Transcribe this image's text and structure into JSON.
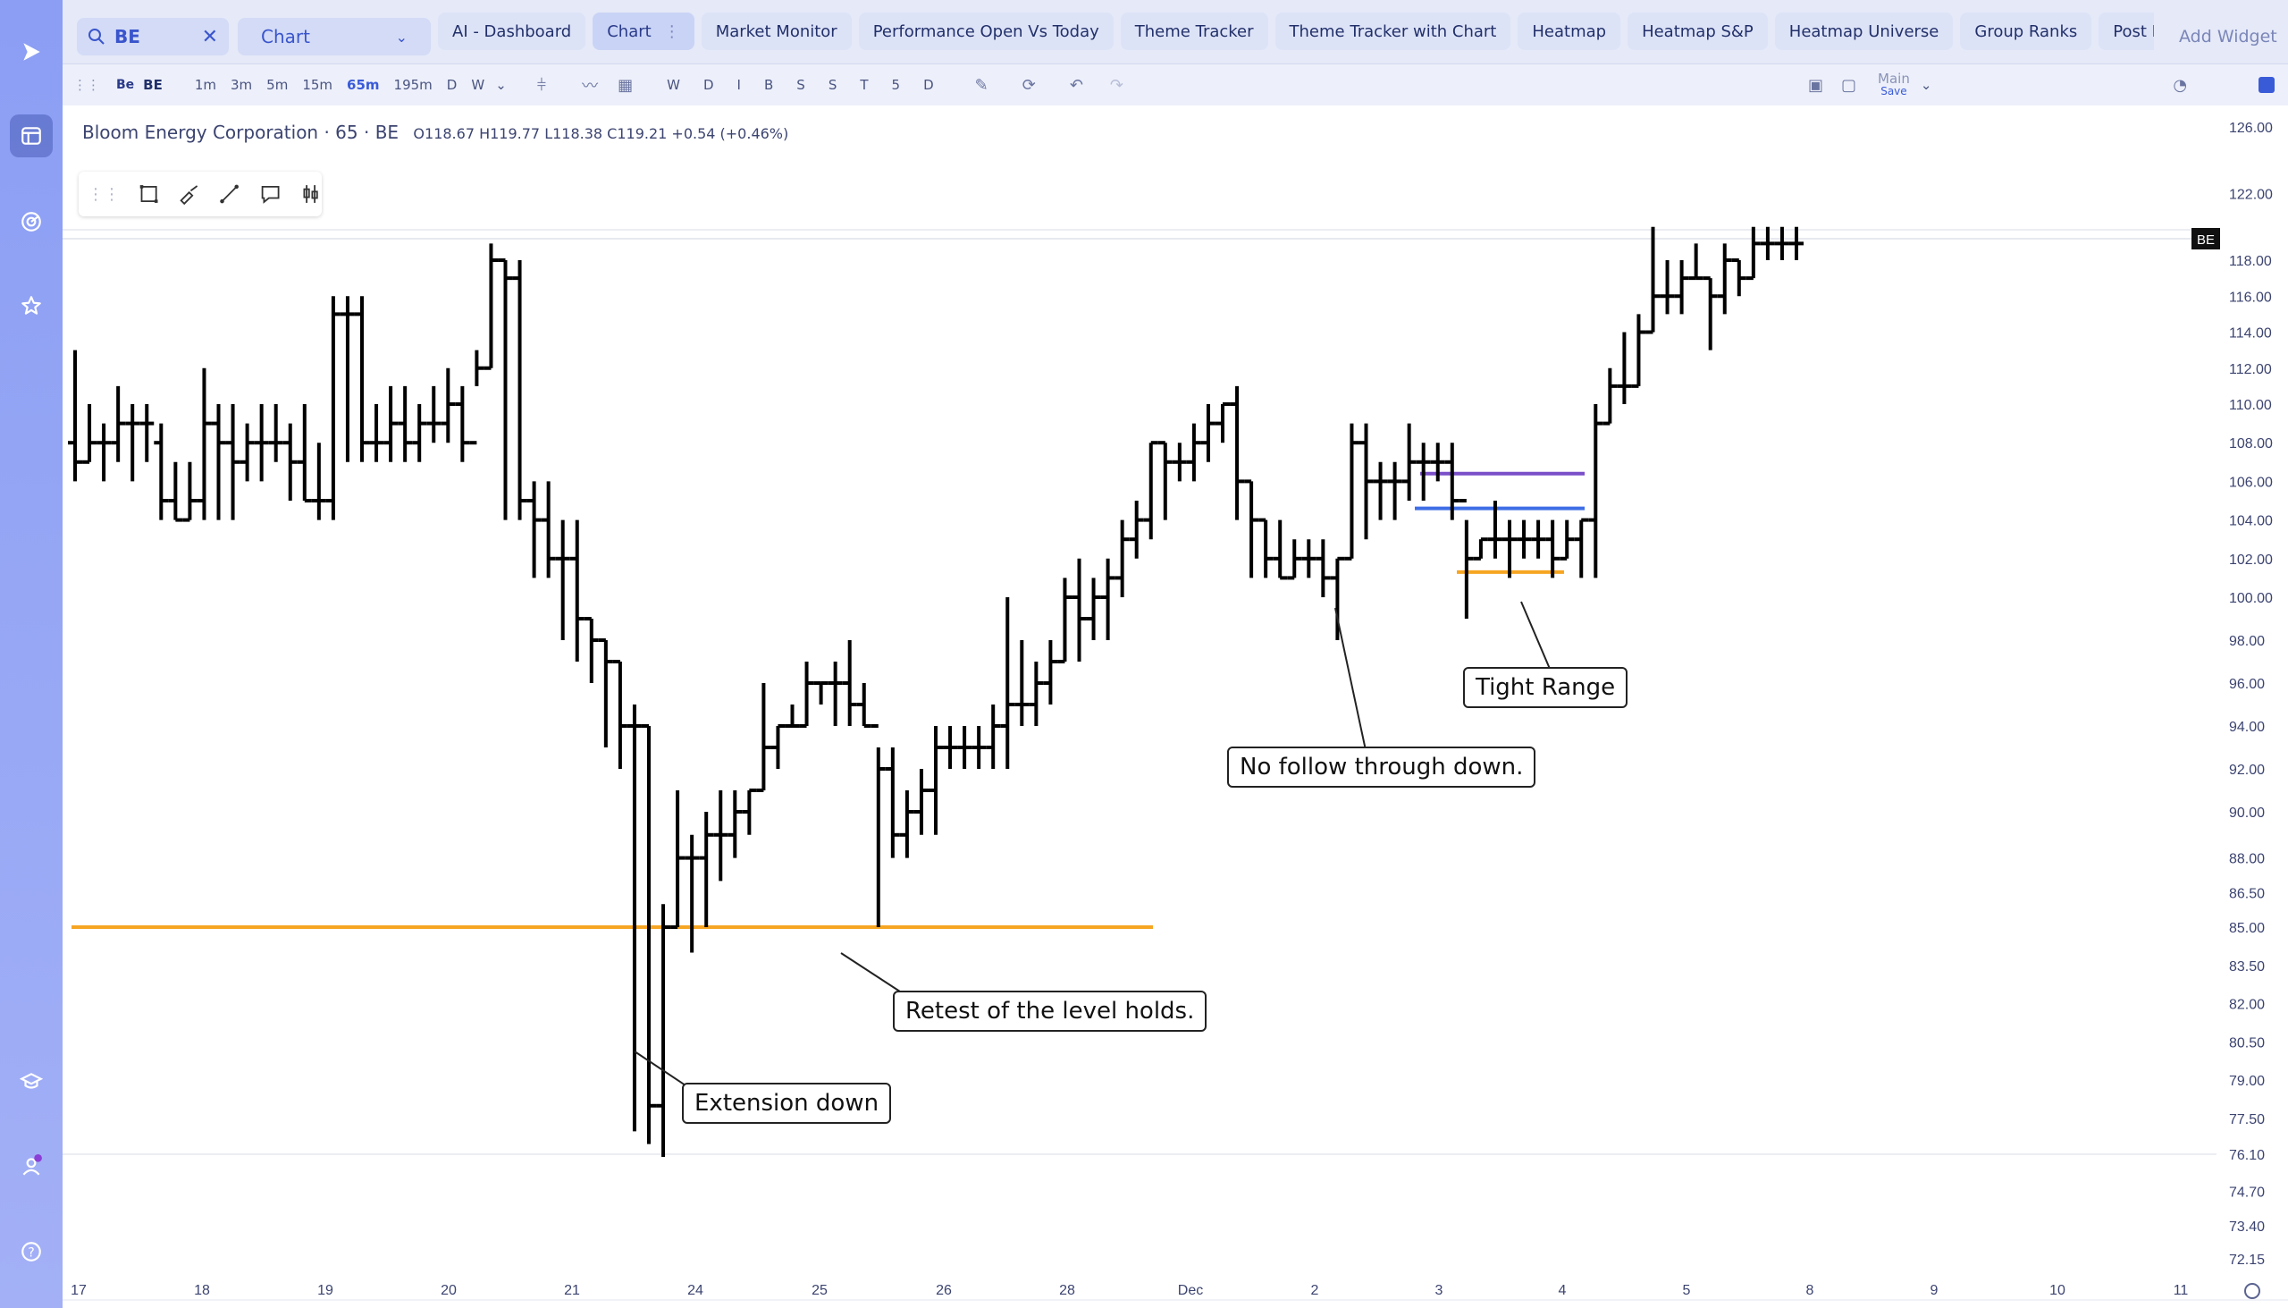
{
  "search": {
    "value": "BE",
    "clear": "✕"
  },
  "mode": {
    "selected": "Chart"
  },
  "tabs": [
    {
      "label": "AI - Dashboard"
    },
    {
      "label": "Chart",
      "active": true
    },
    {
      "label": "Market Monitor"
    },
    {
      "label": "Performance Open Vs Today"
    },
    {
      "label": "Theme Tracker"
    },
    {
      "label": "Theme Tracker with Chart"
    },
    {
      "label": "Heatmap"
    },
    {
      "label": "Heatmap S&P"
    },
    {
      "label": "Heatmap Universe"
    },
    {
      "label": "Group Ranks"
    },
    {
      "label": "Post Move"
    }
  ],
  "add_widget": "Add Widget",
  "toolbar": {
    "symbol": "BE",
    "timeframes": [
      "1m",
      "3m",
      "5m",
      "15m",
      "65m",
      "195m",
      "D",
      "W"
    ],
    "active_timeframe": "65m",
    "study_letters": [
      "W",
      "D",
      "I",
      "B",
      "S",
      "S",
      "T",
      "5",
      "D"
    ],
    "layout_name": "Main",
    "save_label": "Save"
  },
  "legend": {
    "name": "Bloom Energy Corporation · 65 · BE",
    "ohlc": "O118.67 H119.77 L118.38 C119.21 +0.54 (+0.46%)"
  },
  "annotations": {
    "extension": "Extension down",
    "retest": "Retest of the level holds.",
    "no_follow": "No follow through down.",
    "tight_range": "Tight Range"
  },
  "price_tag": "BE",
  "colors": {
    "level_orange": "#f6a623",
    "level_purple": "#7a4fc8",
    "level_blue": "#3f6ee6",
    "accent": "#3a5bd8"
  },
  "chart_data": {
    "type": "ohlc",
    "symbol": "BE",
    "interval": "65m",
    "y_ticks": [
      "126.00",
      "122.00",
      "118.00",
      "116.00",
      "114.00",
      "112.00",
      "110.00",
      "108.00",
      "106.00",
      "104.00",
      "102.00",
      "100.00",
      "98.00",
      "96.00",
      "94.00",
      "92.00",
      "90.00",
      "88.00",
      "86.50",
      "85.00",
      "83.50",
      "82.00",
      "80.50",
      "79.00",
      "77.50",
      "76.10",
      "74.70",
      "73.40",
      "72.15"
    ],
    "x_ticks": [
      "17",
      "18",
      "19",
      "20",
      "21",
      "24",
      "25",
      "26",
      "28",
      "Dec",
      "2",
      "3",
      "4",
      "5",
      "8",
      "9",
      "10",
      "11"
    ],
    "last_price": 119.21,
    "levels": [
      {
        "name": "support",
        "price": 85.0,
        "color": "orange"
      },
      {
        "name": "range-high",
        "price": 106.4,
        "color": "purple"
      },
      {
        "name": "range-mid",
        "price": 104.6,
        "color": "blue"
      },
      {
        "name": "range-low",
        "price": 101.3,
        "color": "orange"
      }
    ],
    "bars": [
      {
        "t": "17",
        "o": 108,
        "h": 113,
        "l": 106,
        "c": 107
      },
      {
        "t": "17",
        "o": 107,
        "h": 110,
        "l": 107,
        "c": 108
      },
      {
        "t": "17",
        "o": 108,
        "h": 109,
        "l": 106,
        "c": 108
      },
      {
        "t": "17",
        "o": 108,
        "h": 111,
        "l": 107,
        "c": 109
      },
      {
        "t": "17",
        "o": 109,
        "h": 110,
        "l": 106,
        "c": 109
      },
      {
        "t": "17",
        "o": 109,
        "h": 110,
        "l": 107,
        "c": 109
      },
      {
        "t": "18",
        "o": 108,
        "h": 109,
        "l": 104,
        "c": 105
      },
      {
        "t": "18",
        "o": 105,
        "h": 107,
        "l": 104,
        "c": 104
      },
      {
        "t": "18",
        "o": 104,
        "h": 107,
        "l": 104,
        "c": 105
      },
      {
        "t": "18",
        "o": 105,
        "h": 112,
        "l": 104,
        "c": 109
      },
      {
        "t": "18",
        "o": 109,
        "h": 110,
        "l": 104,
        "c": 108
      },
      {
        "t": "18",
        "o": 108,
        "h": 110,
        "l": 104,
        "c": 107
      },
      {
        "t": "18",
        "o": 107,
        "h": 109,
        "l": 106,
        "c": 108
      },
      {
        "t": "18",
        "o": 108,
        "h": 110,
        "l": 106,
        "c": 108
      },
      {
        "t": "18",
        "o": 108,
        "h": 110,
        "l": 107,
        "c": 108
      },
      {
        "t": "19",
        "o": 108,
        "h": 109,
        "l": 105,
        "c": 107
      },
      {
        "t": "19",
        "o": 107,
        "h": 110,
        "l": 105,
        "c": 105
      },
      {
        "t": "19",
        "o": 105,
        "h": 108,
        "l": 104,
        "c": 105
      },
      {
        "t": "19",
        "o": 105,
        "h": 116,
        "l": 104,
        "c": 115
      },
      {
        "t": "19",
        "o": 115,
        "h": 116,
        "l": 107,
        "c": 115
      },
      {
        "t": "19",
        "o": 115,
        "h": 116,
        "l": 107,
        "c": 108
      },
      {
        "t": "19",
        "o": 108,
        "h": 110,
        "l": 107,
        "c": 108
      },
      {
        "t": "19",
        "o": 108,
        "h": 111,
        "l": 107,
        "c": 109
      },
      {
        "t": "20",
        "o": 109,
        "h": 111,
        "l": 107,
        "c": 108
      },
      {
        "t": "20",
        "o": 108,
        "h": 110,
        "l": 107,
        "c": 109
      },
      {
        "t": "20",
        "o": 109,
        "h": 111,
        "l": 108,
        "c": 109
      },
      {
        "t": "20",
        "o": 109,
        "h": 112,
        "l": 108,
        "c": 110
      },
      {
        "t": "20",
        "o": 110,
        "h": 111,
        "l": 107,
        "c": 108
      },
      {
        "t": "20",
        "o": 108,
        "h": 113,
        "l": 111,
        "c": 112
      },
      {
        "t": "20",
        "o": 112,
        "h": 119,
        "l": 112,
        "c": 118
      },
      {
        "t": "20",
        "o": 118,
        "h": 118,
        "l": 104,
        "c": 117
      },
      {
        "t": "20",
        "o": 117,
        "h": 118,
        "l": 104,
        "c": 105
      },
      {
        "t": "21",
        "o": 105,
        "h": 106,
        "l": 101,
        "c": 104
      },
      {
        "t": "21",
        "o": 104,
        "h": 106,
        "l": 101,
        "c": 102
      },
      {
        "t": "21",
        "o": 102,
        "h": 104,
        "l": 98,
        "c": 102
      },
      {
        "t": "21",
        "o": 102,
        "h": 104,
        "l": 97,
        "c": 99
      },
      {
        "t": "21",
        "o": 99,
        "h": 99,
        "l": 96,
        "c": 98
      },
      {
        "t": "21",
        "o": 98,
        "h": 98,
        "l": 93,
        "c": 97
      },
      {
        "t": "21",
        "o": 97,
        "h": 97,
        "l": 92,
        "c": 94
      },
      {
        "t": "21",
        "o": 94,
        "h": 95,
        "l": 77,
        "c": 94
      },
      {
        "t": "24",
        "o": 94,
        "h": 94,
        "l": 76.5,
        "c": 78
      },
      {
        "t": "24",
        "o": 78,
        "h": 86,
        "l": 76,
        "c": 85
      },
      {
        "t": "24",
        "o": 85,
        "h": 91,
        "l": 85,
        "c": 88
      },
      {
        "t": "24",
        "o": 88,
        "h": 89,
        "l": 84,
        "c": 88
      },
      {
        "t": "24",
        "o": 88,
        "h": 90,
        "l": 85,
        "c": 89
      },
      {
        "t": "24",
        "o": 89,
        "h": 91,
        "l": 87,
        "c": 89
      },
      {
        "t": "24",
        "o": 89,
        "h": 91,
        "l": 88,
        "c": 90
      },
      {
        "t": "24",
        "o": 90,
        "h": 91,
        "l": 89,
        "c": 91
      },
      {
        "t": "24",
        "o": 91,
        "h": 96,
        "l": 91,
        "c": 93
      },
      {
        "t": "24",
        "o": 93,
        "h": 94,
        "l": 92,
        "c": 94
      },
      {
        "t": "24",
        "o": 94,
        "h": 95,
        "l": 94,
        "c": 94
      },
      {
        "t": "24",
        "o": 94,
        "h": 97,
        "l": 94,
        "c": 96
      },
      {
        "t": "24",
        "o": 96,
        "h": 96,
        "l": 95,
        "c": 96
      },
      {
        "t": "25",
        "o": 96,
        "h": 97,
        "l": 94,
        "c": 96
      },
      {
        "t": "25",
        "o": 96,
        "h": 98,
        "l": 94,
        "c": 95
      },
      {
        "t": "25",
        "o": 95,
        "h": 96,
        "l": 94,
        "c": 94
      },
      {
        "t": "25",
        "o": 94,
        "h": 93,
        "l": 85,
        "c": 92
      },
      {
        "t": "25",
        "o": 92,
        "h": 93,
        "l": 88,
        "c": 89
      },
      {
        "t": "25",
        "o": 89,
        "h": 91,
        "l": 88,
        "c": 90
      },
      {
        "t": "25",
        "o": 90,
        "h": 92,
        "l": 89,
        "c": 91
      },
      {
        "t": "25",
        "o": 91,
        "h": 94,
        "l": 89,
        "c": 93
      },
      {
        "t": "26",
        "o": 93,
        "h": 94,
        "l": 92,
        "c": 93
      },
      {
        "t": "26",
        "o": 93,
        "h": 94,
        "l": 92,
        "c": 93
      },
      {
        "t": "26",
        "o": 93,
        "h": 94,
        "l": 92,
        "c": 93
      },
      {
        "t": "26",
        "o": 93,
        "h": 95,
        "l": 92,
        "c": 94
      },
      {
        "t": "26",
        "o": 94,
        "h": 100,
        "l": 92,
        "c": 95
      },
      {
        "t": "26",
        "o": 95,
        "h": 98,
        "l": 94,
        "c": 95
      },
      {
        "t": "26",
        "o": 95,
        "h": 97,
        "l": 94,
        "c": 96
      },
      {
        "t": "26",
        "o": 96,
        "h": 98,
        "l": 95,
        "c": 97
      },
      {
        "t": "26",
        "o": 97,
        "h": 101,
        "l": 97,
        "c": 100
      },
      {
        "t": "28",
        "o": 100,
        "h": 102,
        "l": 97,
        "c": 99
      },
      {
        "t": "28",
        "o": 99,
        "h": 101,
        "l": 98,
        "c": 100
      },
      {
        "t": "28",
        "o": 100,
        "h": 102,
        "l": 98,
        "c": 101
      },
      {
        "t": "28",
        "o": 101,
        "h": 104,
        "l": 100,
        "c": 103
      },
      {
        "t": "28",
        "o": 103,
        "h": 105,
        "l": 102,
        "c": 104
      },
      {
        "t": "28",
        "o": 104,
        "h": 108,
        "l": 103,
        "c": 108
      },
      {
        "t": "28",
        "o": 108,
        "h": 108,
        "l": 104,
        "c": 107
      },
      {
        "t": "28",
        "o": 107,
        "h": 108,
        "l": 106,
        "c": 107
      },
      {
        "t": "28",
        "o": 107,
        "h": 109,
        "l": 106,
        "c": 108
      },
      {
        "t": "28",
        "o": 108,
        "h": 110,
        "l": 107,
        "c": 109
      },
      {
        "t": "28",
        "o": 109,
        "h": 110,
        "l": 108,
        "c": 110
      },
      {
        "t": "Dec",
        "o": 110,
        "h": 111,
        "l": 104,
        "c": 106
      },
      {
        "t": "Dec",
        "o": 106,
        "h": 106,
        "l": 101,
        "c": 104
      },
      {
        "t": "Dec",
        "o": 104,
        "h": 104,
        "l": 101,
        "c": 102
      },
      {
        "t": "Dec",
        "o": 102,
        "h": 104,
        "l": 101,
        "c": 101
      },
      {
        "t": "Dec",
        "o": 101,
        "h": 103,
        "l": 101,
        "c": 102
      },
      {
        "t": "Dec",
        "o": 102,
        "h": 103,
        "l": 101,
        "c": 102
      },
      {
        "t": "Dec",
        "o": 102,
        "h": 103,
        "l": 100,
        "c": 101
      },
      {
        "t": "Dec",
        "o": 101,
        "h": 102,
        "l": 98,
        "c": 102
      },
      {
        "t": "2",
        "o": 102,
        "h": 109,
        "l": 102,
        "c": 108
      },
      {
        "t": "2",
        "o": 108,
        "h": 109,
        "l": 103,
        "c": 106
      },
      {
        "t": "2",
        "o": 106,
        "h": 107,
        "l": 104,
        "c": 106
      },
      {
        "t": "2",
        "o": 106,
        "h": 107,
        "l": 104,
        "c": 106
      },
      {
        "t": "2",
        "o": 106,
        "h": 109,
        "l": 105,
        "c": 107
      },
      {
        "t": "2",
        "o": 107,
        "h": 108,
        "l": 105,
        "c": 107
      },
      {
        "t": "2",
        "o": 107,
        "h": 108,
        "l": 106,
        "c": 107
      },
      {
        "t": "2",
        "o": 107,
        "h": 108,
        "l": 104,
        "c": 105
      },
      {
        "t": "3",
        "o": 105,
        "h": 104,
        "l": 99,
        "c": 102
      },
      {
        "t": "3",
        "o": 102,
        "h": 103,
        "l": 102,
        "c": 103
      },
      {
        "t": "3",
        "o": 103,
        "h": 105,
        "l": 102,
        "c": 103
      },
      {
        "t": "3",
        "o": 103,
        "h": 104,
        "l": 101,
        "c": 103
      },
      {
        "t": "3",
        "o": 103,
        "h": 104,
        "l": 102,
        "c": 103
      },
      {
        "t": "3",
        "o": 103,
        "h": 104,
        "l": 102,
        "c": 103
      },
      {
        "t": "3",
        "o": 103,
        "h": 104,
        "l": 101,
        "c": 102
      },
      {
        "t": "3",
        "o": 102,
        "h": 104,
        "l": 102,
        "c": 103
      },
      {
        "t": "4",
        "o": 103,
        "h": 104,
        "l": 101,
        "c": 104
      },
      {
        "t": "4",
        "o": 104,
        "h": 110,
        "l": 101,
        "c": 109
      },
      {
        "t": "4",
        "o": 109,
        "h": 112,
        "l": 109,
        "c": 111
      },
      {
        "t": "4",
        "o": 111,
        "h": 114,
        "l": 110,
        "c": 111
      },
      {
        "t": "4",
        "o": 111,
        "h": 115,
        "l": 111,
        "c": 114
      },
      {
        "t": "4",
        "o": 114,
        "h": 120,
        "l": 114,
        "c": 116
      },
      {
        "t": "4",
        "o": 116,
        "h": 118,
        "l": 115,
        "c": 116
      },
      {
        "t": "5",
        "o": 116,
        "h": 118,
        "l": 115,
        "c": 117
      },
      {
        "t": "5",
        "o": 117,
        "h": 119,
        "l": 117,
        "c": 117
      },
      {
        "t": "5",
        "o": 117,
        "h": 117,
        "l": 113,
        "c": 116
      },
      {
        "t": "5",
        "o": 116,
        "h": 119,
        "l": 115,
        "c": 118
      },
      {
        "t": "5",
        "o": 118,
        "h": 118,
        "l": 116,
        "c": 117
      },
      {
        "t": "5",
        "o": 117,
        "h": 120,
        "l": 117,
        "c": 119
      },
      {
        "t": "5",
        "o": 119,
        "h": 120,
        "l": 118,
        "c": 119
      },
      {
        "t": "5",
        "o": 119,
        "h": 120,
        "l": 118,
        "c": 119
      },
      {
        "t": "8",
        "o": 119,
        "h": 120,
        "l": 118,
        "c": 119
      }
    ]
  }
}
